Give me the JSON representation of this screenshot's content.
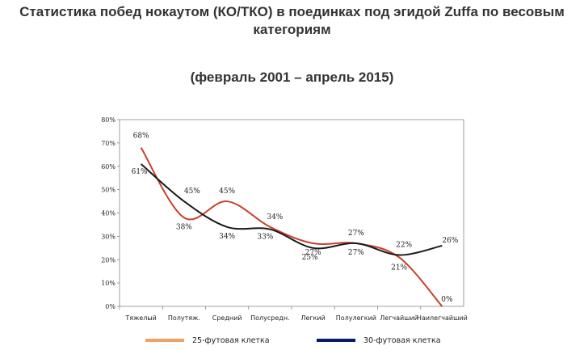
{
  "header": {
    "title_line1": "Статистика побед нокаутом (КО/ТКО) в поединках под эгидой Zuffa по весовым",
    "title_line2": "категориям",
    "subtitle": "(февраль 2001 – апрель 2015)"
  },
  "chart_data": {
    "type": "line",
    "title": "Статистика побед нокаутом (КО/ТКО) в поединках под эгидой Zuffa по весовым категориям",
    "subtitle": "(февраль 2001 – апрель 2015)",
    "categories": [
      "Тяжелый",
      "Полутяж.",
      "Средний",
      "Полусредн.",
      "Легкий",
      "Полулегкий",
      "Легчайший",
      "Наилегчайший"
    ],
    "yticks": [
      "0%",
      "10%",
      "20%",
      "30%",
      "40%",
      "50%",
      "60%",
      "70%",
      "80%"
    ],
    "ylim": [
      0,
      80
    ],
    "series": [
      {
        "name": "25-футовая клетка",
        "color": "#c8402a",
        "values": [
          68,
          38,
          45,
          34,
          27,
          27,
          21,
          0
        ],
        "labels": [
          "68%",
          "38%",
          "45%",
          "34%",
          "27%",
          "27%",
          "21%",
          "0%"
        ]
      },
      {
        "name": "30-футовая клетка",
        "color": "#1a1a1a",
        "values": [
          61,
          45,
          34,
          33,
          25,
          27,
          22,
          26
        ],
        "labels": [
          "61%",
          "45%",
          "34%",
          "33%",
          "25%",
          "27%",
          "22%",
          "26%"
        ]
      }
    ],
    "legend": {
      "placement": "bottom",
      "items": [
        {
          "name": "25-футовая клетка",
          "color": "#f0a060"
        },
        {
          "name": "30-футовая клетка",
          "color": "#0a1a6a"
        }
      ]
    },
    "grid": false
  }
}
